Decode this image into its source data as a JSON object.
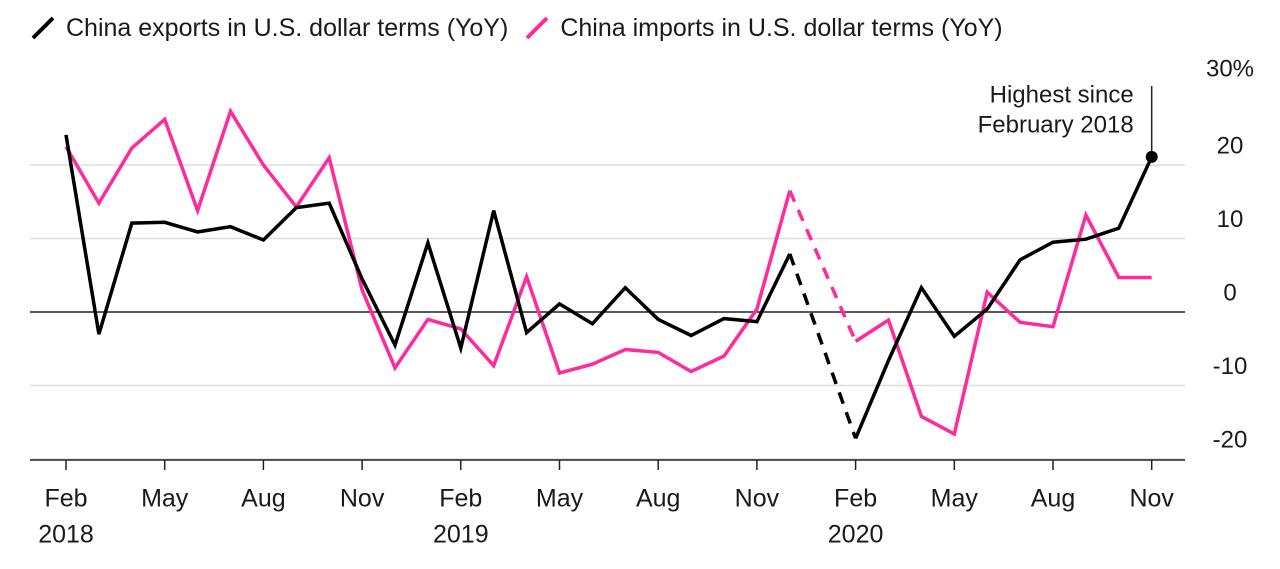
{
  "chart_data": {
    "type": "line",
    "title": "",
    "xlabel": "",
    "ylabel": "",
    "y_unit_suffix": "%",
    "ylim": [
      -20,
      30
    ],
    "y_ticks": [
      {
        "value": 30,
        "label": "30%"
      },
      {
        "value": 20,
        "label": "20"
      },
      {
        "value": 10,
        "label": "10"
      },
      {
        "value": 0,
        "label": "0"
      },
      {
        "value": -10,
        "label": "-10"
      },
      {
        "value": -20,
        "label": "-20"
      }
    ],
    "x": [
      "2018-02",
      "2018-03",
      "2018-04",
      "2018-05",
      "2018-06",
      "2018-07",
      "2018-08",
      "2018-09",
      "2018-10",
      "2018-11",
      "2018-12",
      "2019-01",
      "2019-02",
      "2019-03",
      "2019-04",
      "2019-05",
      "2019-06",
      "2019-07",
      "2019-08",
      "2019-09",
      "2019-10",
      "2019-11",
      "2019-12",
      "2020-01",
      "2020-02",
      "2020-03",
      "2020-04",
      "2020-05",
      "2020-06",
      "2020-07",
      "2020-08",
      "2020-09",
      "2020-10",
      "2020-11"
    ],
    "x_ticks": [
      {
        "x": "2018-02",
        "label": "Feb",
        "year": "2018"
      },
      {
        "x": "2018-05",
        "label": "May",
        "year": ""
      },
      {
        "x": "2018-08",
        "label": "Aug",
        "year": ""
      },
      {
        "x": "2018-11",
        "label": "Nov",
        "year": ""
      },
      {
        "x": "2019-02",
        "label": "Feb",
        "year": "2019"
      },
      {
        "x": "2019-05",
        "label": "May",
        "year": ""
      },
      {
        "x": "2019-08",
        "label": "Aug",
        "year": ""
      },
      {
        "x": "2019-11",
        "label": "Nov",
        "year": ""
      },
      {
        "x": "2020-02",
        "label": "Feb",
        "year": "2020"
      },
      {
        "x": "2020-05",
        "label": "May",
        "year": ""
      },
      {
        "x": "2020-08",
        "label": "Aug",
        "year": ""
      },
      {
        "x": "2020-11",
        "label": "Nov",
        "year": ""
      }
    ],
    "dashed_segment": {
      "from": "2019-12",
      "to": "2020-02"
    },
    "series": [
      {
        "name": "China exports in U.S. dollar terms (YoY)",
        "color": "#000000",
        "values": [
          24.1,
          -3.0,
          12.1,
          12.2,
          10.9,
          11.6,
          9.8,
          14.2,
          14.8,
          4.5,
          -4.5,
          9.4,
          -4.9,
          13.8,
          -2.8,
          1.1,
          -1.6,
          3.3,
          -1.0,
          -3.2,
          -0.9,
          -1.3,
          7.9,
          null,
          -17.2,
          -6.6,
          3.3,
          -3.3,
          0.4,
          7.1,
          9.5,
          9.9,
          11.4,
          21.1
        ]
      },
      {
        "name": "China imports in U.S. dollar terms (YoY)",
        "color": "#ff2a9c",
        "values": [
          22.5,
          14.8,
          22.3,
          26.2,
          13.8,
          27.3,
          20.0,
          14.3,
          21.0,
          3.0,
          -7.6,
          -1.0,
          -2.3,
          -7.3,
          4.8,
          -8.3,
          -7.1,
          -5.1,
          -5.5,
          -8.1,
          -6.0,
          0.4,
          16.5,
          null,
          -4.0,
          -1.1,
          -14.2,
          -16.6,
          2.7,
          -1.4,
          -2.0,
          13.2,
          4.7,
          4.7
        ]
      }
    ],
    "annotations": [
      {
        "x": "2020-11",
        "y": 21.1,
        "lines": [
          "Highest since",
          "February 2018"
        ]
      }
    ],
    "grid": true,
    "legend_position": "top-left"
  }
}
